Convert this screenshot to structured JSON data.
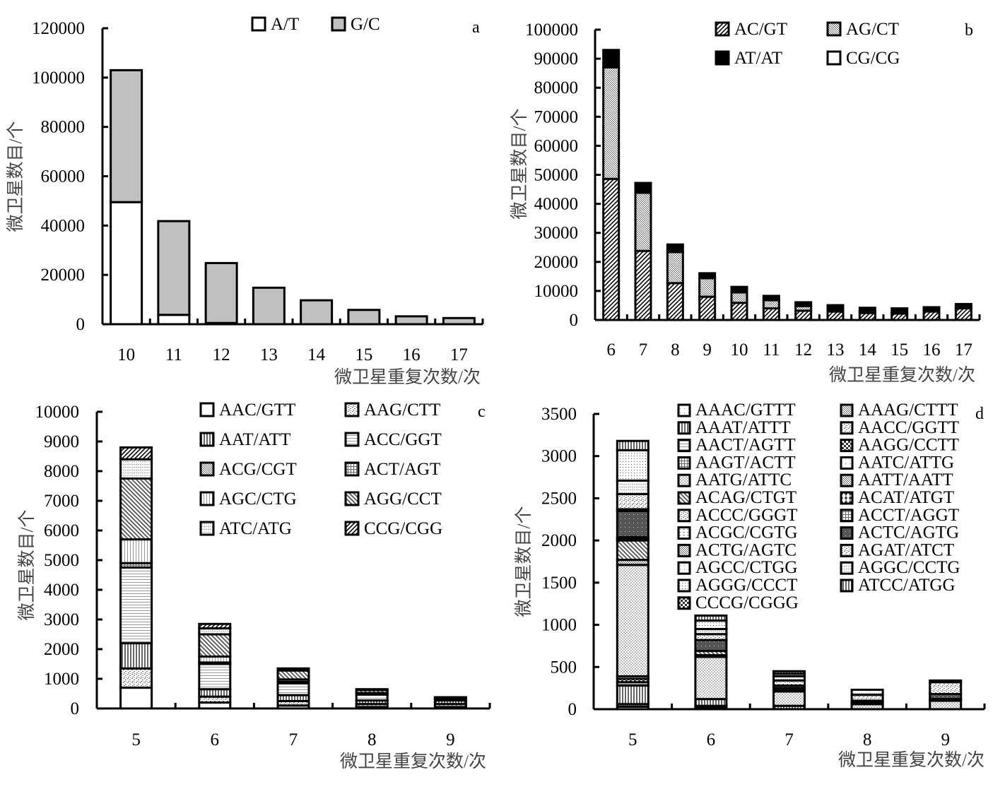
{
  "chart_data": [
    {
      "id": "a",
      "type": "bar",
      "stacked": true,
      "panel_label": "a",
      "title": "",
      "xlabel": "微卫星重复次数/次",
      "ylabel": "微卫星数目/个",
      "categories": [
        "10",
        "11",
        "12",
        "13",
        "14",
        "15",
        "16",
        "17"
      ],
      "ylim": [
        0,
        120000
      ],
      "yticks": [
        0,
        20000,
        40000,
        60000,
        80000,
        100000,
        120000
      ],
      "legend_position": "top-center",
      "legend_columns": 2,
      "series": [
        {
          "name": "A/T",
          "fill": "white",
          "values": [
            49500,
            3800,
            500,
            0,
            0,
            0,
            0,
            0
          ]
        },
        {
          "name": "G/C",
          "fill": "gray",
          "values": [
            53500,
            38000,
            24300,
            14800,
            9700,
            5800,
            3200,
            2500
          ]
        }
      ]
    },
    {
      "id": "b",
      "type": "bar",
      "stacked": true,
      "panel_label": "b",
      "title": "",
      "xlabel": "微卫星重复次数/次",
      "ylabel": "微卫星数目/个",
      "categories": [
        "6",
        "7",
        "8",
        "9",
        "10",
        "11",
        "12",
        "13",
        "14",
        "15",
        "16",
        "17"
      ],
      "ylim": [
        0,
        100000
      ],
      "yticks": [
        0,
        10000,
        20000,
        30000,
        40000,
        50000,
        60000,
        70000,
        80000,
        90000,
        100000
      ],
      "legend_position": "top-right",
      "legend_columns": 2,
      "series": [
        {
          "name": "AC/GT",
          "fill": "diag",
          "values": [
            48600,
            23800,
            12700,
            8000,
            5900,
            4000,
            3200,
            2900,
            2400,
            2200,
            2900,
            4000
          ]
        },
        {
          "name": "AG/CT",
          "fill": "dense",
          "values": [
            38400,
            20000,
            10700,
            6400,
            3600,
            2800,
            1600,
            400,
            400,
            0,
            0,
            600
          ]
        },
        {
          "name": "AT/AT",
          "fill": "black",
          "values": [
            6000,
            3400,
            2600,
            1700,
            1900,
            1500,
            1300,
            1800,
            1400,
            1800,
            1500,
            900
          ]
        },
        {
          "name": "CG/CG",
          "fill": "white",
          "values": [
            0,
            0,
            0,
            0,
            0,
            0,
            0,
            0,
            0,
            0,
            0,
            0
          ]
        }
      ]
    },
    {
      "id": "c",
      "type": "bar",
      "stacked": true,
      "panel_label": "c",
      "title": "",
      "xlabel": "微卫星重复次数/次",
      "ylabel": "微卫星数目/个",
      "categories": [
        "5",
        "6",
        "7",
        "8",
        "9"
      ],
      "ylim": [
        0,
        10000
      ],
      "yticks": [
        0,
        1000,
        2000,
        3000,
        4000,
        5000,
        6000,
        7000,
        8000,
        9000,
        10000
      ],
      "legend_position": "top-right",
      "legend_columns": 2,
      "series": [
        {
          "name": "AAC/GTT",
          "fill": "white",
          "values": [
            700,
            200,
            100,
            50,
            50
          ]
        },
        {
          "name": "AAG/CTT",
          "fill": "stipple",
          "values": [
            650,
            200,
            150,
            100,
            100
          ]
        },
        {
          "name": "AAT/ATT",
          "fill": "vline-dark",
          "values": [
            850,
            250,
            200,
            120,
            120
          ]
        },
        {
          "name": "ACC/GGT",
          "fill": "hline",
          "values": [
            2550,
            850,
            400,
            200,
            50
          ]
        },
        {
          "name": "ACG/CGT",
          "fill": "dense",
          "values": [
            0,
            0,
            0,
            0,
            0
          ]
        },
        {
          "name": "ACT/AGT",
          "fill": "grid",
          "values": [
            150,
            50,
            50,
            20,
            10
          ]
        },
        {
          "name": "AGC/CTG",
          "fill": "vline-light",
          "values": [
            800,
            200,
            80,
            30,
            20
          ]
        },
        {
          "name": "AGG/CCT",
          "fill": "diag-back",
          "values": [
            2050,
            750,
            300,
            100,
            0
          ]
        },
        {
          "name": "ATC/ATG",
          "fill": "stipple-light",
          "values": [
            650,
            200,
            50,
            20,
            20
          ]
        },
        {
          "name": "CCG/CGG",
          "fill": "diag",
          "values": [
            400,
            150,
            20,
            10,
            10
          ]
        }
      ]
    },
    {
      "id": "d",
      "type": "bar",
      "stacked": true,
      "panel_label": "d",
      "title": "",
      "xlabel": "微卫星重复次数/次",
      "ylabel": "微卫星数目/个",
      "categories": [
        "5",
        "6",
        "7",
        "8",
        "9"
      ],
      "ylim": [
        0,
        3500
      ],
      "yticks": [
        0,
        500,
        1000,
        1500,
        2000,
        2500,
        3000,
        3500
      ],
      "legend_position": "top-right",
      "legend_columns": 2,
      "series": [
        {
          "name": "AAAC/GTTT",
          "fill": "dots-sparse",
          "values": [
            30,
            20,
            0,
            0,
            0
          ]
        },
        {
          "name": "AAAG/CTTT",
          "fill": "dense",
          "values": [
            30,
            20,
            0,
            0,
            0
          ]
        },
        {
          "name": "AAAT/ATTT",
          "fill": "vline-dark",
          "values": [
            220,
            80,
            40,
            0,
            0
          ]
        },
        {
          "name": "AACC/GGTT",
          "fill": "stipple",
          "values": [
            0,
            0,
            0,
            0,
            0
          ]
        },
        {
          "name": "AACT/AGTT",
          "fill": "hline",
          "values": [
            40,
            0,
            0,
            0,
            0
          ]
        },
        {
          "name": "AAGG/CCTT",
          "fill": "checker-dark",
          "values": [
            40,
            0,
            0,
            0,
            0
          ]
        },
        {
          "name": "AAGT/ACTT",
          "fill": "grid",
          "values": [
            30,
            0,
            0,
            0,
            0
          ]
        },
        {
          "name": "AATC/ATTG",
          "fill": "dots-sparse",
          "values": [
            0,
            0,
            0,
            0,
            0
          ]
        },
        {
          "name": "AATG/ATTC",
          "fill": "checker-light",
          "values": [
            1320,
            500,
            170,
            60,
            100
          ]
        },
        {
          "name": "AATT/AATT",
          "fill": "dense",
          "values": [
            60,
            20,
            20,
            20,
            20
          ]
        },
        {
          "name": "ACAG/CTGT",
          "fill": "diag-back",
          "values": [
            230,
            50,
            20,
            0,
            0
          ]
        },
        {
          "name": "ACAT/ATGT",
          "fill": "diamond",
          "values": [
            20,
            0,
            0,
            0,
            0
          ]
        },
        {
          "name": "ACCC/GGGT",
          "fill": "stipple",
          "values": [
            0,
            0,
            0,
            0,
            0
          ]
        },
        {
          "name": "ACCT/AGGT",
          "fill": "grid",
          "values": [
            0,
            0,
            0,
            0,
            0
          ]
        },
        {
          "name": "ACGC/CGTG",
          "fill": "dashes",
          "values": [
            20,
            0,
            0,
            0,
            0
          ]
        },
        {
          "name": "ACTC/AGTG",
          "fill": "dark-dots",
          "values": [
            310,
            130,
            30,
            20,
            60
          ]
        },
        {
          "name": "ACTG/AGTC",
          "fill": "dense",
          "values": [
            20,
            0,
            0,
            0,
            0
          ]
        },
        {
          "name": "AGAT/ATCT",
          "fill": "stipple",
          "values": [
            180,
            70,
            60,
            70,
            140
          ]
        },
        {
          "name": "AGCC/CTGG",
          "fill": "dots-sparse",
          "values": [
            0,
            0,
            0,
            0,
            0
          ]
        },
        {
          "name": "AGGC/CCTG",
          "fill": "stipple-light",
          "values": [
            160,
            60,
            50,
            60,
            20
          ]
        },
        {
          "name": "AGGG/CCCT",
          "fill": "dots",
          "values": [
            360,
            100,
            30,
            0,
            0
          ]
        },
        {
          "name": "ATCC/ATGG",
          "fill": "vline-dark",
          "values": [
            110,
            60,
            30,
            0,
            0
          ]
        },
        {
          "name": "CCCG/CGGG",
          "fill": "checker-dark",
          "values": [
            0,
            0,
            0,
            0,
            0
          ]
        }
      ]
    }
  ]
}
